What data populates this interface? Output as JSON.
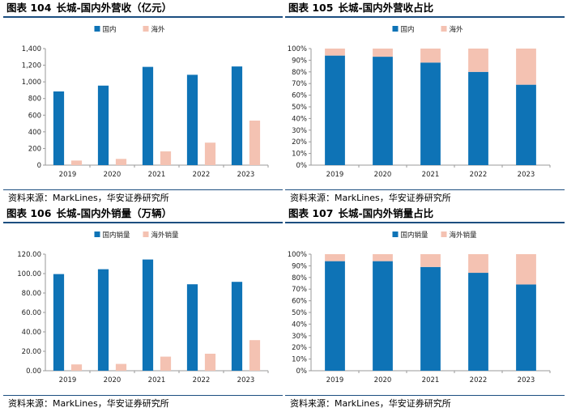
{
  "colors": {
    "domestic": "#0e73b6",
    "overseas": "#f4c2b2",
    "axis": "#999999"
  },
  "panels": [
    {
      "fig_no": "图表 104",
      "title": "长城-国内外营收（亿元）",
      "source": "资料来源：MarkLines，华安证券研究所",
      "chart_data": {
        "type": "bar",
        "categories": [
          "2019",
          "2020",
          "2021",
          "2022",
          "2023"
        ],
        "series": [
          {
            "name": "国内",
            "values": [
              885,
              955,
              1180,
              1085,
              1185
            ]
          },
          {
            "name": "海外",
            "values": [
              55,
              75,
              165,
              270,
              535
            ]
          }
        ],
        "ylim": [
          0,
          1400
        ],
        "yticks": [
          0,
          200,
          400,
          600,
          800,
          1000,
          1200,
          1400
        ],
        "ytick_labels": [
          "0",
          "200",
          "400",
          "600",
          "800",
          "1,000",
          "1,200",
          "1,400"
        ],
        "legend": "top"
      }
    },
    {
      "fig_no": "图表 105",
      "title": "长城-国内外营收占比",
      "source": "资料来源：MarkLines，华安证券研究所",
      "chart_data": {
        "type": "bar",
        "stacked": true,
        "categories": [
          "2019",
          "2020",
          "2021",
          "2022",
          "2023"
        ],
        "series": [
          {
            "name": "国内",
            "values": [
              94,
              93,
              88,
              80,
              69
            ]
          },
          {
            "name": "海外",
            "values": [
              6,
              7,
              12,
              20,
              31
            ]
          }
        ],
        "ylim": [
          0,
          100
        ],
        "yticks": [
          0,
          10,
          20,
          30,
          40,
          50,
          60,
          70,
          80,
          90,
          100
        ],
        "ytick_labels": [
          "0%",
          "10%",
          "20%",
          "30%",
          "40%",
          "50%",
          "60%",
          "70%",
          "80%",
          "90%",
          "100%"
        ],
        "legend": "top"
      }
    },
    {
      "fig_no": "图表 106",
      "title": "长城-国内外销量（万辆）",
      "source": "资料来源：MarkLines，华安证券研究所",
      "chart_data": {
        "type": "bar",
        "categories": [
          "2019",
          "2020",
          "2021",
          "2022",
          "2023"
        ],
        "series": [
          {
            "name": "国内销量",
            "values": [
              99.5,
              104.5,
              114.5,
              89,
              91.5
            ]
          },
          {
            "name": "海外销量",
            "values": [
              6.5,
              7,
              14.5,
              17.5,
              31.5
            ]
          }
        ],
        "ylim": [
          0,
          120
        ],
        "yticks": [
          0,
          20,
          40,
          60,
          80,
          100,
          120
        ],
        "ytick_labels": [
          "0.00",
          "20.00",
          "40.00",
          "60.00",
          "80.00",
          "100.00",
          "120.00"
        ],
        "legend": "top"
      }
    },
    {
      "fig_no": "图表 107",
      "title": "长城-国内外销量占比",
      "source": "资料来源：MarkLines，华安证券研究所",
      "chart_data": {
        "type": "bar",
        "stacked": true,
        "categories": [
          "2019",
          "2020",
          "2021",
          "2022",
          "2023"
        ],
        "series": [
          {
            "name": "国内销量",
            "values": [
              94,
              94,
              89,
              84,
              74
            ]
          },
          {
            "name": "海外销量",
            "values": [
              6,
              6,
              11,
              16,
              26
            ]
          }
        ],
        "ylim": [
          0,
          100
        ],
        "yticks": [
          0,
          10,
          20,
          30,
          40,
          50,
          60,
          70,
          80,
          90,
          100
        ],
        "ytick_labels": [
          "0%",
          "10%",
          "20%",
          "30%",
          "40%",
          "50%",
          "60%",
          "70%",
          "80%",
          "90%",
          "100%"
        ],
        "legend": "top"
      }
    }
  ]
}
